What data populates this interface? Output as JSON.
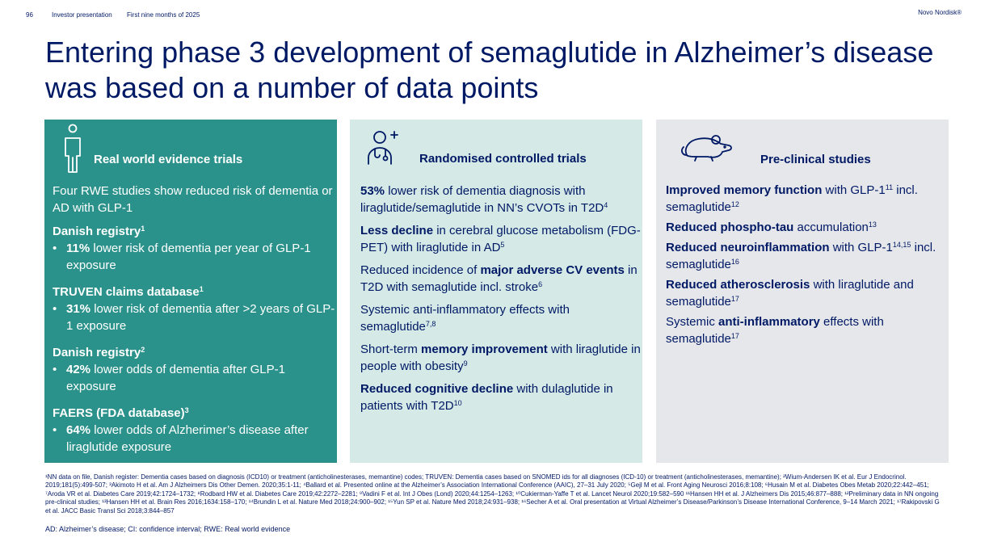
{
  "header": {
    "page_number": "96",
    "presentation": "Investor presentation",
    "period": "First nine months of 2025",
    "brand": "Novo Nordisk®"
  },
  "title": "Entering phase 3 development of semaglutide in Alzheimer’s disease was based on a number of data points",
  "panels": {
    "rwe": {
      "icon": "person-icon",
      "title": "Real world evidence trials",
      "intro": "Four RWE studies show reduced risk of dementia or AD with GLP-1",
      "sections": [
        {
          "heading": "Danish registry",
          "sup": "1",
          "bold": "11%",
          "text": " lower risk of dementia per year of GLP-1 exposure"
        },
        {
          "heading": "TRUVEN claims database",
          "sup": "1",
          "bold": "31%",
          "text": " lower risk of dementia after >2 years of GLP-1 exposure"
        },
        {
          "heading": "Danish registry",
          "sup": "2",
          "bold": "42%",
          "text": " lower odds of dementia after GLP-1 exposure"
        },
        {
          "heading": "FAERS (FDA database)",
          "sup": "3",
          "bold": "64%",
          "text": " lower odds of Alzherimer’s disease after liraglutide exposure"
        }
      ]
    },
    "rct": {
      "icon": "doctor-icon",
      "title": "Randomised controlled trials",
      "items": [
        {
          "pre": "",
          "bold": "53%",
          "post": " lower risk of dementia diagnosis with liraglutide/semaglutide in NN’s CVOTs in T2D",
          "sup": "4"
        },
        {
          "pre": "",
          "bold": "Less decline",
          "post": " in cerebral glucose metabolism (FDG-PET) with liraglutide in AD",
          "sup": "5"
        },
        {
          "pre": "Reduced incidence of ",
          "bold": "major adverse CV events",
          "post": " in T2D with semaglutide incl. stroke",
          "sup": "6"
        },
        {
          "pre": "Systemic anti-inflammatory effects with semaglutide",
          "bold": "",
          "post": "",
          "sup": "7,8"
        },
        {
          "pre": "Short-term ",
          "bold": "memory improvement",
          "post": " with liraglutide in people with obesity",
          "sup": "9"
        },
        {
          "pre": "",
          "bold": "Reduced cognitive decline",
          "post": " with dulaglutide in patients with T2D",
          "sup": "10"
        }
      ]
    },
    "preclinical": {
      "icon": "mouse-icon",
      "title": "Pre-clinical studies",
      "items": [
        {
          "pre": "",
          "bold": "Improved memory function",
          "mid": " with GLP-1",
          "sup1": "11",
          "tail": " incl. semaglutide",
          "sup2": "12"
        },
        {
          "pre": "",
          "bold": "Reduced phospho-tau",
          "mid": " accumulation",
          "sup1": "13",
          "tail": "",
          "sup2": ""
        },
        {
          "pre": "",
          "bold": "Reduced neuroinflammation",
          "mid": " with GLP-1",
          "sup1": "14,15",
          "tail": " incl. semaglutide",
          "sup2": "16"
        },
        {
          "pre": "",
          "bold": "Reduced atherosclerosis",
          "mid": " with liraglutide and semaglutide",
          "sup1": "17",
          "tail": "",
          "sup2": ""
        },
        {
          "pre": "Systemic ",
          "bold": "anti-inflammatory",
          "mid": " effects with semaglutide",
          "sup1": "17",
          "tail": "",
          "sup2": ""
        }
      ]
    }
  },
  "footnotes": "¹NN data on file, Danish register: Dementia cases based on diagnosis (ICD10) or treatment (anticholinesterases, memantine) codes; TRUVEN: Dementia cases based on SNOMED ids for all diagnoses (ICD-10) or treatment (anticholinesterases, memantine); ²Wium-Andersen IK et al. Eur J Endocrinol. 2019;181(5):499-507; ³Akimoto H et al. Am J Alzheimers Dis Other Demen. 2020;35:1-11; ⁴Ballard et al. Presented online at the Alzheimer’s Association International Conference (AAIC), 27–31 July 2020; ⁵Gejl M et al. Front Aging Neurosci 2016;8:108; ⁶Husain M et al. Diabetes Obes Metab 2020;22:442–451; ⁷Aroda VR et al. Diabetes Care 2019;42:1724–1732; ⁸Rodbard HW et al. Diabetes Care 2019;42:2272–2281; ⁹Vadini F et al. Int J Obes (Lond) 2020;44:1254–1263; ¹⁰Cukierman-Yaffe T et al. Lancet Neurol 2020;19:582–590 ¹¹Hansen HH et al. J Alzheimers Dis 2015;46:877–888; ¹²Preliminary data in NN ongoing pre-clinical studies; ¹³Hansen HH et al. Brain Res 2016;1634:158–170; ¹⁴Brundin L et al. Nature Med 2018;24:900–902; ¹⁵Yun SP et al. Nature Med 2018;24:931–938; ¹⁶Secher A et al. Oral presentation at Virtual Alzheimer’s Disease/Parkinson’s Disease International Conference, 9–14 March 2021; ¹⁷Rakipovski G et al. JACC Basic Transl Sci 2018;3:844–857",
  "abbreviations": "AD: Alzheimer’s disease; CI: confidence interval; RWE: Real world evidence",
  "colors": {
    "navy": "#001965",
    "teal": "#2a918b",
    "light_teal": "#d5e9e7",
    "light_grey": "#e6e7eb"
  }
}
